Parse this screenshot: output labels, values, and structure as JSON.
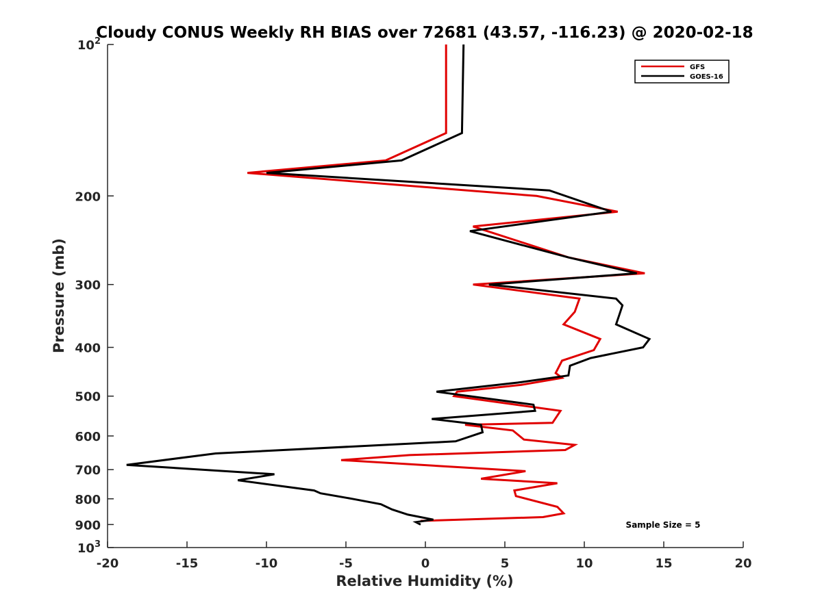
{
  "chart_data": {
    "type": "line",
    "title": "Cloudy CONUS Weekly RH BIAS over 72681 (43.57, -116.23) @ 2020-02-18",
    "xlabel": "Relative Humidity (%)",
    "ylabel": "Pressure (mb)",
    "xlim": [
      -20,
      20
    ],
    "ylim": [
      100,
      1000
    ],
    "yscale": "log",
    "y_reversed": true,
    "grid": false,
    "x_ticks": [
      -20,
      -15,
      -10,
      -5,
      0,
      5,
      10,
      15,
      20
    ],
    "x_tick_labels": [
      "-20",
      "-15",
      "-10",
      "-5",
      "0",
      "5",
      "10",
      "15",
      "20"
    ],
    "y_ticks": [
      100,
      200,
      300,
      400,
      500,
      600,
      700,
      800,
      900,
      1000
    ],
    "y_tick_labels": [
      "10^2",
      "200",
      "300",
      "400",
      "500",
      "600",
      "700",
      "800",
      "900",
      "10^3"
    ],
    "legend_position": "top-right",
    "annotation": "Sample Size = 5",
    "series": [
      {
        "name": "GFS",
        "color": "#e00000",
        "points": [
          [
            1.3,
            100
          ],
          [
            1.3,
            150
          ],
          [
            -2.5,
            170
          ],
          [
            -11.2,
            180
          ],
          [
            7.0,
            200
          ],
          [
            12.1,
            215
          ],
          [
            3.0,
            230
          ],
          [
            9.0,
            265
          ],
          [
            13.8,
            285
          ],
          [
            3.0,
            300
          ],
          [
            9.7,
            320
          ],
          [
            9.4,
            340
          ],
          [
            8.7,
            360
          ],
          [
            11.0,
            385
          ],
          [
            10.6,
            405
          ],
          [
            8.6,
            425
          ],
          [
            8.2,
            450
          ],
          [
            8.6,
            460
          ],
          [
            6.0,
            475
          ],
          [
            2.0,
            490
          ],
          [
            1.8,
            500
          ],
          [
            8.5,
            535
          ],
          [
            8.0,
            565
          ],
          [
            2.5,
            570
          ],
          [
            5.5,
            585
          ],
          [
            6.2,
            610
          ],
          [
            9.4,
            625
          ],
          [
            8.8,
            640
          ],
          [
            -1.0,
            655
          ],
          [
            -5.3,
            670
          ],
          [
            6.3,
            705
          ],
          [
            3.5,
            730
          ],
          [
            8.3,
            745
          ],
          [
            5.6,
            770
          ],
          [
            5.7,
            790
          ],
          [
            8.3,
            830
          ],
          [
            8.7,
            855
          ],
          [
            7.4,
            870
          ],
          [
            -0.3,
            885
          ]
        ]
      },
      {
        "name": "GOES-16",
        "color": "#000000",
        "points": [
          [
            2.4,
            100
          ],
          [
            2.3,
            150
          ],
          [
            -1.5,
            170
          ],
          [
            -10.0,
            180
          ],
          [
            7.8,
            195
          ],
          [
            11.7,
            215
          ],
          [
            2.8,
            235
          ],
          [
            9.0,
            265
          ],
          [
            13.3,
            285
          ],
          [
            4.0,
            300
          ],
          [
            12.0,
            320
          ],
          [
            12.4,
            330
          ],
          [
            12.2,
            345
          ],
          [
            12.0,
            360
          ],
          [
            14.1,
            385
          ],
          [
            13.7,
            400
          ],
          [
            10.4,
            420
          ],
          [
            9.1,
            435
          ],
          [
            9.0,
            455
          ],
          [
            5.8,
            470
          ],
          [
            0.7,
            490
          ],
          [
            6.8,
            520
          ],
          [
            6.9,
            535
          ],
          [
            0.4,
            555
          ],
          [
            3.5,
            570
          ],
          [
            3.6,
            590
          ],
          [
            1.9,
            615
          ],
          [
            -13.2,
            650
          ],
          [
            -18.8,
            685
          ],
          [
            -9.5,
            715
          ],
          [
            -11.8,
            735
          ],
          [
            -7.0,
            770
          ],
          [
            -6.6,
            780
          ],
          [
            -4.6,
            800
          ],
          [
            -2.8,
            820
          ],
          [
            -2.1,
            840
          ],
          [
            -1.1,
            860
          ],
          [
            0.5,
            880
          ],
          [
            -0.6,
            890
          ],
          [
            -0.3,
            900
          ]
        ]
      }
    ]
  }
}
